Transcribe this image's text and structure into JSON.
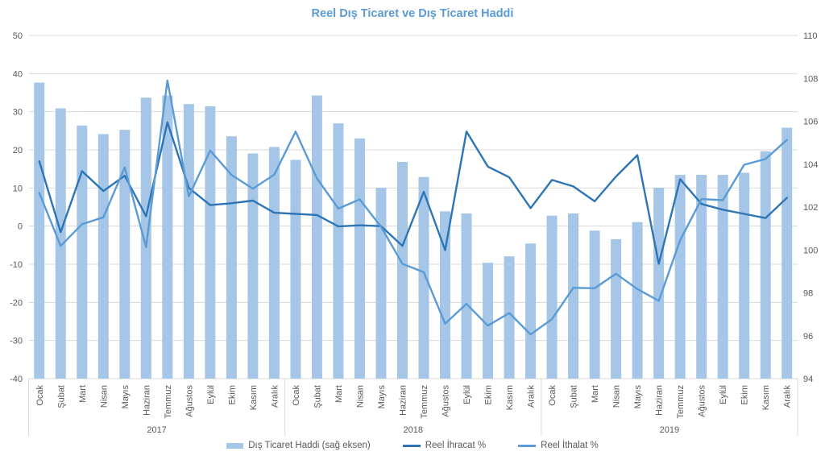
{
  "chart_data": {
    "type": "combo",
    "title": "Reel Dış Ticaret ve Dış Ticaret Haddi",
    "title_color": "#5B9BD5",
    "grid_color": "#D9D9D9",
    "axis_text_color": "#595959",
    "legend_position": "bottom",
    "years": [
      "2017",
      "2018",
      "2019"
    ],
    "months": [
      "Ocak",
      "Şubat",
      "Mart",
      "Nisan",
      "Mayıs",
      "Haziran",
      "Temmuz",
      "Ağustos",
      "Eylül",
      "Ekim",
      "Kasım",
      "Aralık"
    ],
    "left_axis": {
      "min": -40,
      "max": 50,
      "step": 10,
      "ticks": [
        50,
        40,
        30,
        20,
        10,
        0,
        -10,
        -20,
        -30,
        -40
      ]
    },
    "right_axis": {
      "min": 94,
      "max": 110,
      "step": 2,
      "ticks": [
        110,
        108,
        106,
        104,
        102,
        100,
        98,
        96,
        94
      ]
    },
    "series": [
      {
        "name": "Dış Ticaret Haddi (sağ eksen)",
        "type": "bar",
        "axis": "right",
        "color": "#A5C6E7",
        "values": [
          107.8,
          106.6,
          105.8,
          105.4,
          105.6,
          107.1,
          107.2,
          106.8,
          106.7,
          105.3,
          104.5,
          104.8,
          104.2,
          107.2,
          105.9,
          105.2,
          102.9,
          104.1,
          103.4,
          101.8,
          101.7,
          99.4,
          99.7,
          100.3,
          101.6,
          101.7,
          100.9,
          100.5,
          101.3,
          102.9,
          103.5,
          103.5,
          103.5,
          103.6,
          104.6,
          105.7
        ]
      },
      {
        "name": "Reel İhracat %",
        "type": "line",
        "axis": "left",
        "color": "#2E75B6",
        "values": [
          17,
          -1.6,
          14.4,
          9.2,
          13.2,
          2.6,
          27.2,
          10,
          5.5,
          6,
          6.7,
          3.5,
          3.2,
          2.9,
          -0.1,
          0.2,
          0,
          -5.2,
          9,
          -6.3,
          24.8,
          15.6,
          12.8,
          4.7,
          12.1,
          10.4,
          6.5,
          13,
          18.6,
          -9.9,
          12.3,
          5.8,
          4.3,
          3.2,
          2.1,
          7.4
        ]
      },
      {
        "name": "Reel İthalat %",
        "type": "line",
        "axis": "left",
        "color": "#5B9BD5",
        "values": [
          8.7,
          -5.2,
          0.5,
          2.3,
          15.4,
          -5.5,
          38.2,
          7.8,
          19.8,
          13.4,
          9.8,
          13.5,
          24.8,
          12.5,
          4.6,
          7,
          -0.2,
          -9.9,
          -12.1,
          -25.6,
          -20.4,
          -26.1,
          -22.8,
          -28.4,
          -24.4,
          -16.2,
          -16.3,
          -12.5,
          -16.5,
          -19.6,
          -3.7,
          7.1,
          6.8,
          16.1,
          17.6,
          22.6
        ]
      }
    ]
  }
}
